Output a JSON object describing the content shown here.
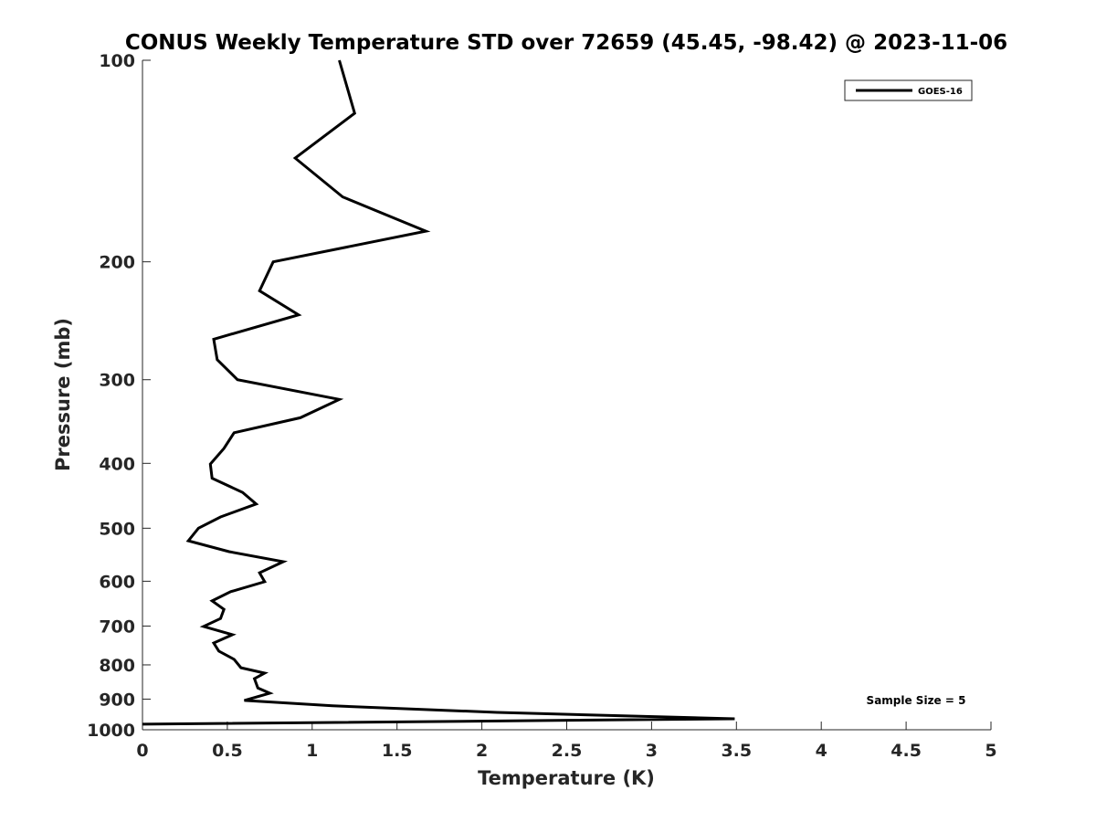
{
  "chart_data": {
    "type": "line",
    "title": "CONUS Weekly Temperature STD over 72659 (45.45, -98.42) @ 2023-11-06",
    "xlabel": "Temperature (K)",
    "ylabel": "Pressure (mb)",
    "xlim": [
      0,
      5
    ],
    "ylim": [
      100,
      1000
    ],
    "yscale": "log",
    "y_reversed": true,
    "grid": false,
    "xticks": [
      "0",
      "0.5",
      "1",
      "1.5",
      "2",
      "2.5",
      "3",
      "3.5",
      "4",
      "4.5",
      "5"
    ],
    "yticks": [
      "100",
      "200",
      "300",
      "400",
      "500",
      "600",
      "700",
      "800",
      "900",
      "1000"
    ],
    "legend": {
      "placement": "top-right",
      "entries": [
        "GOES-16"
      ]
    },
    "annotation": "Sample Size = 5",
    "series": [
      {
        "name": "GOES-16",
        "color": "#000000",
        "points": [
          [
            1.16,
            100
          ],
          [
            1.25,
            120
          ],
          [
            0.9,
            140
          ],
          [
            1.18,
            160
          ],
          [
            1.67,
            180
          ],
          [
            0.77,
            200
          ],
          [
            0.69,
            221
          ],
          [
            0.92,
            240
          ],
          [
            0.42,
            261
          ],
          [
            0.44,
            280
          ],
          [
            0.56,
            300
          ],
          [
            1.16,
            321
          ],
          [
            0.93,
            342
          ],
          [
            0.54,
            360
          ],
          [
            0.48,
            380
          ],
          [
            0.4,
            401
          ],
          [
            0.41,
            421
          ],
          [
            0.59,
            442
          ],
          [
            0.67,
            460
          ],
          [
            0.46,
            481
          ],
          [
            0.33,
            500
          ],
          [
            0.27,
            522
          ],
          [
            0.51,
            542
          ],
          [
            0.83,
            561
          ],
          [
            0.69,
            583
          ],
          [
            0.72,
            601
          ],
          [
            0.52,
            622
          ],
          [
            0.41,
            642
          ],
          [
            0.48,
            661
          ],
          [
            0.46,
            682
          ],
          [
            0.36,
            701
          ],
          [
            0.53,
            721
          ],
          [
            0.42,
            742
          ],
          [
            0.45,
            763
          ],
          [
            0.54,
            785
          ],
          [
            0.58,
            808
          ],
          [
            0.72,
            823
          ],
          [
            0.66,
            839
          ],
          [
            0.68,
            866
          ],
          [
            0.75,
            882
          ],
          [
            0.6,
            904
          ],
          [
            1.12,
            921
          ],
          [
            2.09,
            942
          ],
          [
            3.49,
            963
          ],
          [
            0.0,
            981
          ]
        ]
      }
    ]
  }
}
